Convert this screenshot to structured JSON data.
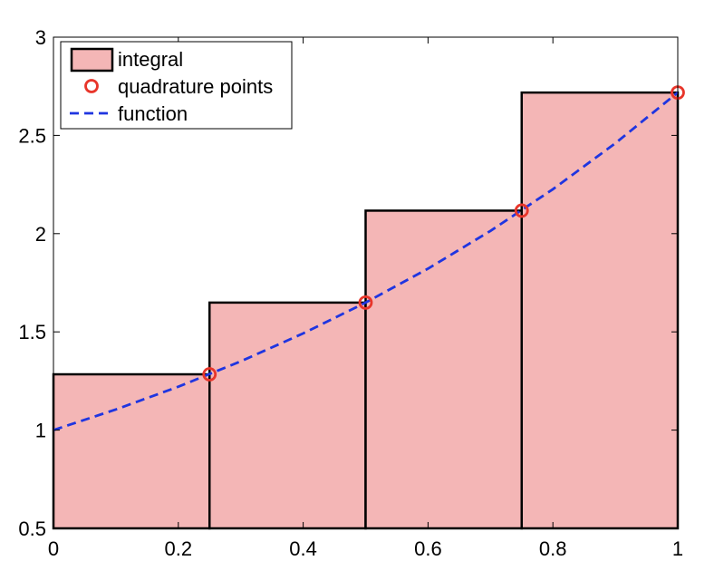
{
  "chart_data": {
    "type": "bar",
    "title": "",
    "xlabel": "",
    "ylabel": "",
    "xlim": [
      0,
      1
    ],
    "ylim": [
      0.5,
      3
    ],
    "xticks": [
      0,
      0.2,
      0.4,
      0.6,
      0.8,
      1
    ],
    "yticks": [
      0.5,
      1,
      1.5,
      2,
      2.5,
      3
    ],
    "xtick_labels": [
      "0",
      "0.2",
      "0.4",
      "0.6",
      "0.8",
      "1"
    ],
    "ytick_labels": [
      "0.5",
      "1",
      "1.5",
      "2",
      "2.5",
      "3"
    ],
    "grid": false,
    "legend_position": "top-left",
    "series": [
      {
        "name": "integral",
        "type": "bar",
        "bins": [
          [
            0,
            0.25
          ],
          [
            0.25,
            0.5
          ],
          [
            0.5,
            0.75
          ],
          [
            0.75,
            1
          ]
        ],
        "values": [
          1.284,
          1.649,
          2.117,
          2.718
        ],
        "color": "#f4b6b6",
        "edge_color": "#000000"
      },
      {
        "name": "quadrature points",
        "type": "scatter",
        "x": [
          0.25,
          0.5,
          0.75,
          1
        ],
        "y": [
          1.284,
          1.649,
          2.117,
          2.718
        ],
        "color": "#e8352a"
      },
      {
        "name": "function",
        "type": "line",
        "style": "dashed",
        "x": [
          0,
          0.1,
          0.2,
          0.3,
          0.4,
          0.5,
          0.6,
          0.7,
          0.8,
          0.9,
          1
        ],
        "y": [
          1.0,
          1.105,
          1.221,
          1.35,
          1.492,
          1.649,
          1.822,
          2.014,
          2.226,
          2.46,
          2.718
        ],
        "color": "#1f35e0"
      }
    ]
  }
}
